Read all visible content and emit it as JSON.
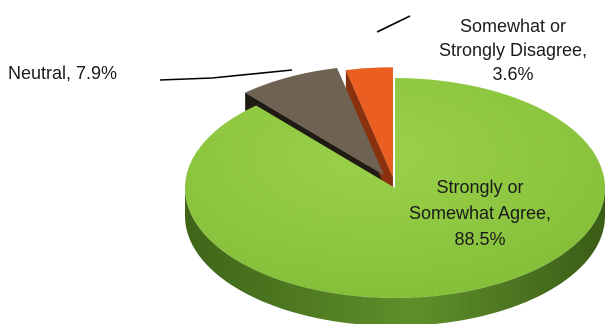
{
  "chart_data": {
    "type": "pie",
    "style": "3d-exploded",
    "title": "",
    "legend": "none",
    "slices": [
      {
        "label_lines": [
          "Strongly or",
          "Somewhat Agree,",
          "88.5%"
        ],
        "value": 88.5,
        "color": "#8dc63f",
        "side_color": "#4f7a22"
      },
      {
        "label_lines": [
          "Neutral, 7.9%"
        ],
        "value": 7.9,
        "color": "#6f6252",
        "side_color": "#1f1a14"
      },
      {
        "label_lines": [
          "Somewhat or",
          "Strongly Disagree,",
          "3.6%"
        ],
        "value": 3.6,
        "color": "#ea5f21",
        "side_color": "#8a3210"
      }
    ]
  }
}
